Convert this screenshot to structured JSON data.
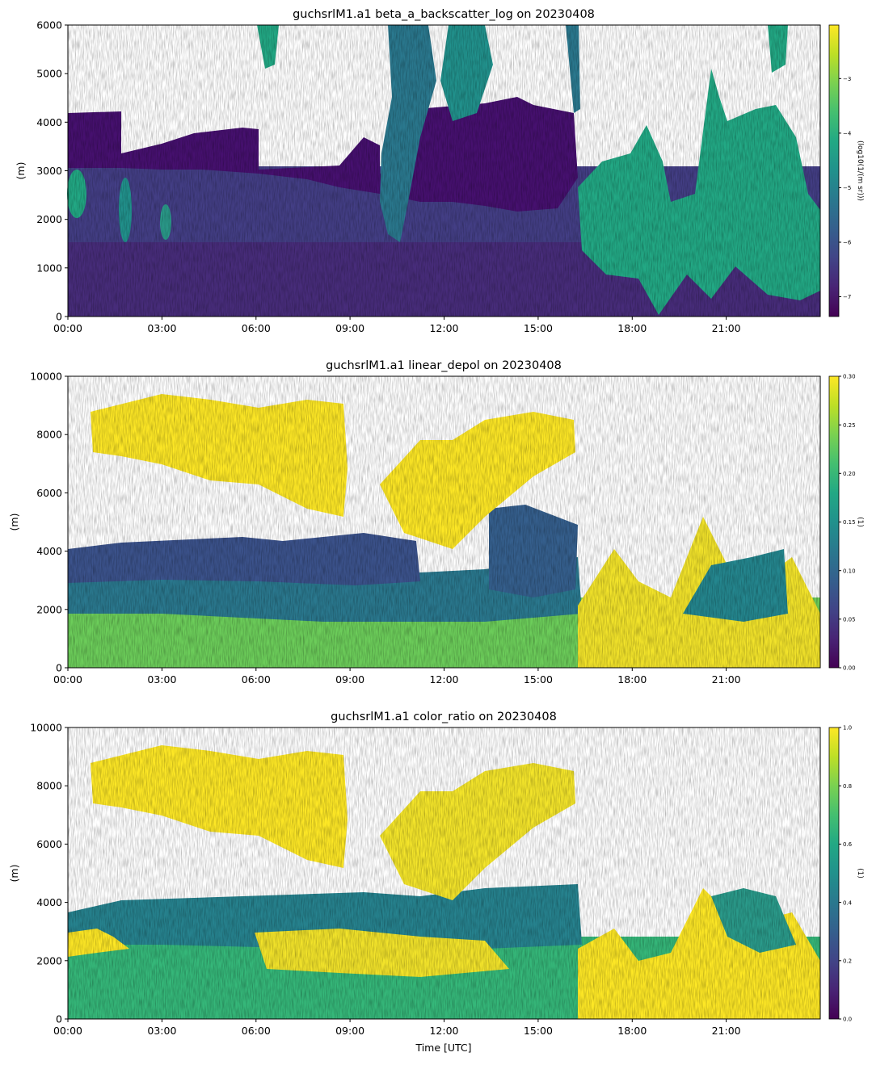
{
  "chart_data": [
    {
      "type": "heatmap",
      "title": "guchsrlM1.a1 beta_a_backscatter_log on 20230408",
      "xlabel": "",
      "ylabel": "(m)",
      "xticks": [
        "00:00",
        "03:00",
        "06:00",
        "09:00",
        "12:00",
        "15:00",
        "18:00",
        "21:00"
      ],
      "yticks": [
        "0",
        "1000",
        "2000",
        "3000",
        "4000",
        "5000",
        "6000"
      ],
      "ylim": [
        0,
        6000
      ],
      "xlim_hours": [
        0,
        24
      ],
      "colormap": "viridis",
      "colorbar": {
        "label": "(log10(1/(m sr)))",
        "range": [
          -7.4,
          -2.5
        ],
        "ticks": [
          "−3",
          "−4",
          "−5",
          "−6",
          "−7"
        ],
        "tick_values": [
          -3,
          -4,
          -5,
          -6,
          -7
        ]
      },
      "summary": {
        "boundary_layer_top_m": 2800,
        "aerosol_layer_m": [
          2800,
          4200
        ],
        "cloud_tops_m": [
          3500,
          6000
        ]
      }
    },
    {
      "type": "heatmap",
      "title": "guchsrlM1.a1 linear_depol on 20230408",
      "xlabel": "",
      "ylabel": "(m)",
      "xticks": [
        "00:00",
        "03:00",
        "06:00",
        "09:00",
        "12:00",
        "15:00",
        "18:00",
        "21:00"
      ],
      "yticks": [
        "0",
        "2000",
        "4000",
        "6000",
        "8000",
        "10000"
      ],
      "ylim": [
        0,
        10000
      ],
      "xlim_hours": [
        0,
        24
      ],
      "colormap": "viridis",
      "colorbar": {
        "label": "(1)",
        "range": [
          0,
          0.3
        ],
        "ticks": [
          "0.00",
          "0.05",
          "0.10",
          "0.15",
          "0.20",
          "0.25",
          "0.30"
        ],
        "tick_values": [
          0,
          0.05,
          0.1,
          0.15,
          0.2,
          0.25,
          0.3
        ]
      },
      "summary": {
        "upper_cloud_depol": 0.3,
        "lower_layer_depol": 0.18
      }
    },
    {
      "type": "heatmap",
      "title": "guchsrlM1.a1 color_ratio on 20230408",
      "xlabel": "Time [UTC]",
      "ylabel": "(m)",
      "xticks": [
        "00:00",
        "03:00",
        "06:00",
        "09:00",
        "12:00",
        "15:00",
        "18:00",
        "21:00"
      ],
      "yticks": [
        "0",
        "2000",
        "4000",
        "6000",
        "8000",
        "10000"
      ],
      "ylim": [
        0,
        10000
      ],
      "xlim_hours": [
        0,
        24
      ],
      "colormap": "viridis",
      "colorbar": {
        "label": "(1)",
        "range": [
          0,
          1
        ],
        "ticks": [
          "0.0",
          "0.2",
          "0.4",
          "0.6",
          "0.8",
          "1.0"
        ],
        "tick_values": [
          0,
          0.2,
          0.4,
          0.6,
          0.8,
          1.0
        ]
      },
      "summary": {
        "upper_cloud_color_ratio": 0.95,
        "lower_layer_color_ratio": 0.65
      }
    }
  ]
}
